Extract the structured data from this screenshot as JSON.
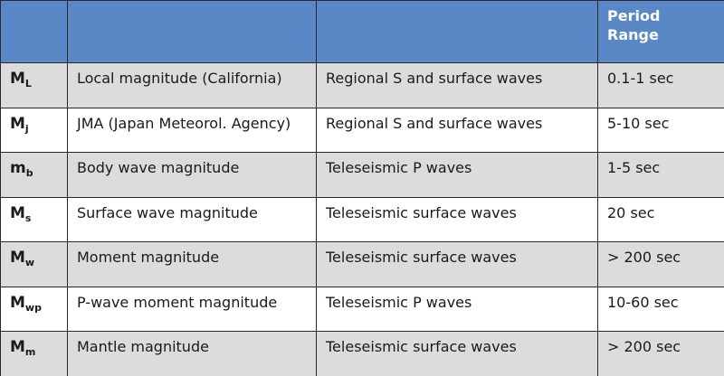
{
  "header": {
    "col1": "",
    "col2": "",
    "col3": "",
    "col4": "Period Range"
  },
  "rows": [
    {
      "symbol": "M",
      "subscript": "L",
      "name": "Local magnitude (California)",
      "waves": "Regional S and surface waves",
      "period": "0.1-1 sec"
    },
    {
      "symbol": "M",
      "subscript": "j",
      "name": "JMA (Japan Meteorol. Agency)",
      "waves": "Regional S and surface waves",
      "period": "5-10 sec"
    },
    {
      "symbol": "m",
      "subscript": "b",
      "name": "Body wave magnitude",
      "waves": "Teleseismic P waves",
      "period": "1-5 sec"
    },
    {
      "symbol": "M",
      "subscript": "s",
      "name": "Surface wave magnitude",
      "waves": "Teleseismic surface waves",
      "period": "20 sec"
    },
    {
      "symbol": "M",
      "subscript": "w",
      "name": "Moment magnitude",
      "waves": "Teleseismic surface waves",
      "period": "> 200 sec"
    },
    {
      "symbol": "M",
      "subscript": "wp",
      "name": "P-wave moment magnitude",
      "waves": "Teleseismic P waves",
      "period": "10-60 sec"
    },
    {
      "symbol": "M",
      "subscript": "m",
      "name": "Mantle magnitude",
      "waves": "Teleseismic surface waves",
      "period": "> 200 sec"
    }
  ]
}
